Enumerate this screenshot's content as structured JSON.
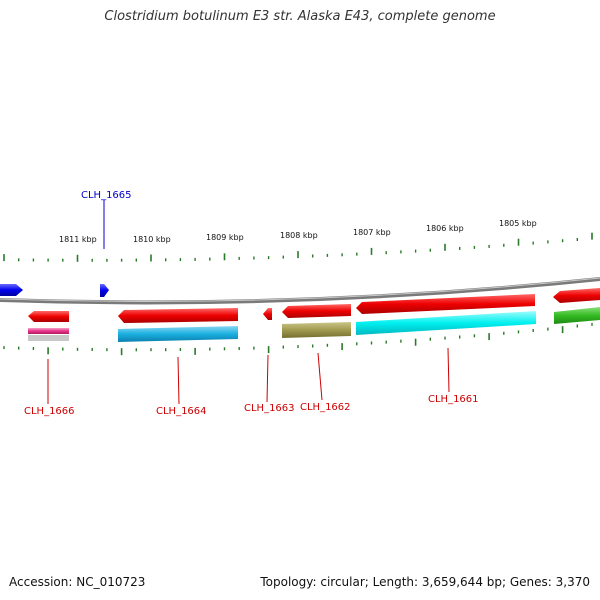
{
  "title": "Clostridium botulinum E3 str. Alaska E43, complete genome",
  "accession_label": "Accession: NC_010723",
  "summary_label": "Topology: circular; Length: 3,659,644 bp; Genes: 3,370",
  "scale": {
    "ticks": [
      "1811 kbp",
      "1810 kbp",
      "1809 kbp",
      "1808 kbp",
      "1807 kbp",
      "1806 kbp",
      "1805 kbp"
    ]
  },
  "genes": {
    "top": [
      {
        "label": "CLH_1665",
        "color": "#0000cc"
      }
    ],
    "bottom": [
      {
        "label": "CLH_1666",
        "color": "#cc0000"
      },
      {
        "label": "CLH_1664",
        "color": "#cc0000"
      },
      {
        "label": "CLH_1663",
        "color": "#cc0000"
      },
      {
        "label": "CLH_1662",
        "color": "#cc0000"
      },
      {
        "label": "CLH_1661",
        "color": "#cc0000"
      }
    ]
  },
  "colors": {
    "backbone": "#888888",
    "tick": "#2a7a2a",
    "forward_gene": "#1010ee",
    "reverse_gene": "#ee1010",
    "cog_pink": "#e8338a",
    "cog_cyan": "#1ab0e0",
    "cog_bright_cyan": "#00f0f0",
    "cog_olive": "#a09a50",
    "cog_green": "#33bb22"
  }
}
